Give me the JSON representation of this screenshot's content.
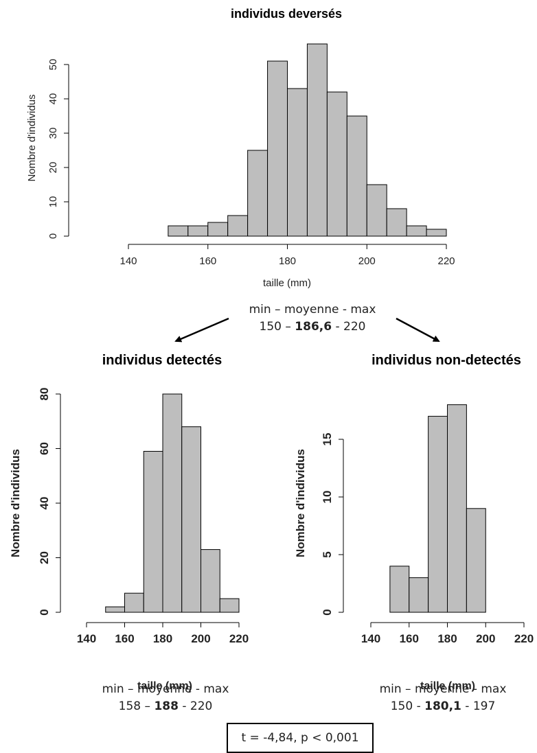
{
  "chart_data": [
    {
      "type": "bar",
      "title": "individus deversés",
      "xlabel": "taille (mm)",
      "ylabel": "Nombre d'individus",
      "bins": [
        [
          150,
          155
        ],
        [
          155,
          160
        ],
        [
          160,
          165
        ],
        [
          165,
          170
        ],
        [
          170,
          175
        ],
        [
          175,
          180
        ],
        [
          180,
          185
        ],
        [
          185,
          190
        ],
        [
          190,
          195
        ],
        [
          195,
          200
        ],
        [
          200,
          205
        ],
        [
          205,
          210
        ],
        [
          210,
          215
        ],
        [
          215,
          220
        ]
      ],
      "values": [
        3,
        3,
        4,
        6,
        25,
        51,
        43,
        56,
        42,
        35,
        15,
        8,
        3,
        2
      ],
      "xlim": [
        140,
        220
      ],
      "ylim": [
        0,
        50
      ],
      "xticks": [
        "140",
        "160",
        "180",
        "200",
        "220"
      ],
      "yticks": [
        "0",
        "10",
        "20",
        "30",
        "40",
        "50"
      ],
      "stats_header": "min – moyenne - max",
      "stats_min": "150 – ",
      "stats_mean": "186,6",
      "stats_max": " - 220"
    },
    {
      "type": "bar",
      "title": "individus detectés",
      "xlabel": "taille (mm)",
      "ylabel": "Nombre d'individus",
      "bins": [
        [
          150,
          160
        ],
        [
          160,
          170
        ],
        [
          170,
          180
        ],
        [
          180,
          190
        ],
        [
          190,
          200
        ],
        [
          200,
          210
        ],
        [
          210,
          220
        ]
      ],
      "values": [
        2,
        7,
        59,
        80,
        68,
        23,
        5
      ],
      "xlim": [
        140,
        220
      ],
      "ylim": [
        0,
        80
      ],
      "xticks": [
        "140",
        "160",
        "180",
        "200",
        "220"
      ],
      "yticks": [
        "0",
        "20",
        "40",
        "60",
        "80"
      ],
      "stats_header": "min – moyenne - max",
      "stats_min": "158 – ",
      "stats_mean": "188",
      "stats_max": " - 220"
    },
    {
      "type": "bar",
      "title": "individus non-detectés",
      "xlabel": "taille (mm)",
      "ylabel": "Nombre d'individus",
      "bins": [
        [
          150,
          160
        ],
        [
          160,
          170
        ],
        [
          170,
          180
        ],
        [
          180,
          190
        ],
        [
          190,
          200
        ]
      ],
      "values": [
        4,
        3,
        17,
        18,
        9
      ],
      "xlim": [
        140,
        220
      ],
      "ylim": [
        0,
        15
      ],
      "xticks": [
        "140",
        "160",
        "180",
        "200",
        "220"
      ],
      "yticks": [
        "0",
        "5",
        "10",
        "15"
      ],
      "stats_header": "min – moyenne - max",
      "stats_min": "150 - ",
      "stats_mean": "180,1",
      "stats_max": " - 197"
    }
  ],
  "ttest": "t = -4,84, p < 0,001",
  "colors": {
    "bar_fill": "#bebebe",
    "bar_stroke": "#000000"
  }
}
